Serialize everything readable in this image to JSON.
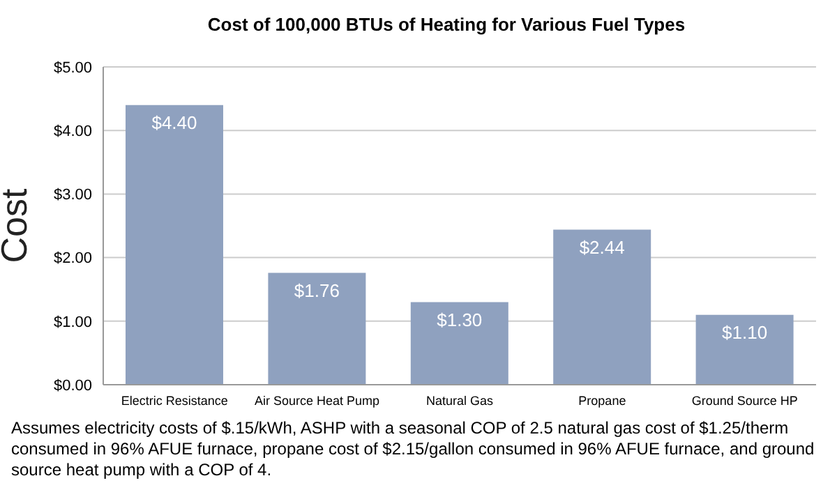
{
  "chart_data": {
    "type": "bar",
    "title": "Cost of 100,000 BTUs of Heating for Various Fuel Types",
    "ylabel": "Cost",
    "categories": [
      "Electric Resistance",
      "Air Source Heat Pump",
      "Natural Gas",
      "Propane",
      "Ground Source HP"
    ],
    "values": [
      4.4,
      1.76,
      1.3,
      2.44,
      1.1
    ],
    "value_labels": [
      "$4.40",
      "$1.76",
      "$1.30",
      "$2.44",
      "$1.10"
    ],
    "color": "#8fa1bf",
    "ylim": [
      0,
      5
    ],
    "yticks": [
      {
        "value": 0,
        "label": "$0.00"
      },
      {
        "value": 1,
        "label": "$1.00"
      },
      {
        "value": 2,
        "label": "$2.00"
      },
      {
        "value": 3,
        "label": "$3.00"
      },
      {
        "value": 4,
        "label": "$4.00"
      },
      {
        "value": 5,
        "label": "$5.00"
      }
    ],
    "grid": "y",
    "annotations": [
      "Assumes electricity costs of $.15/kWh, ASHP with a seasonal COP of 2.5 natural gas cost of $1.25/therm consumed in 96% AFUE furnace, propane cost of $2.15/gallon consumed in 96% AFUE furnace, and ground source heat pump with a COP of 4."
    ]
  }
}
